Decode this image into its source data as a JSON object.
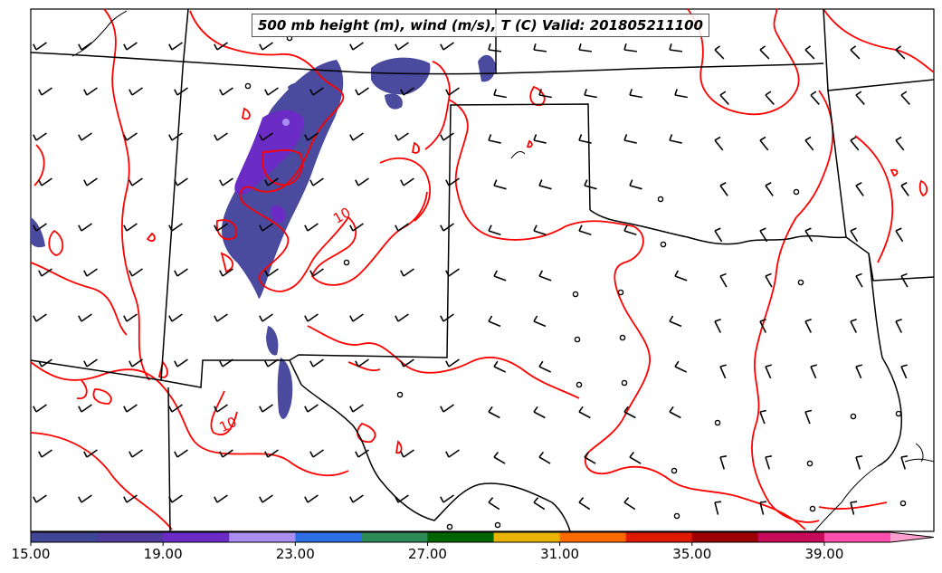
{
  "title": "500 mb height (m), wind (m/s), T (C) Valid: 201805211100",
  "contour_labels": [
    "10",
    "10"
  ],
  "colorbar": {
    "ticks": [
      "15.00",
      "19.00",
      "23.00",
      "27.00",
      "31.00",
      "35.00",
      "39.00"
    ],
    "colors": [
      "#3e4695",
      "#4d3a9a",
      "#6a2cc4",
      "#a98ef0",
      "#2f6fe6",
      "#2e8b57",
      "#006400",
      "#e8b400",
      "#ff6a00",
      "#e01a00",
      "#9c0000",
      "#c80a5a",
      "#ff4fae",
      "#ff9fd0"
    ]
  },
  "colors": {
    "temperature_contour": "#ff0000",
    "state_borders": "#000000",
    "precip_shading": "#4a4a9e"
  },
  "icons": [
    "wind-barb-icon",
    "calm-wind-circle-icon"
  ]
}
